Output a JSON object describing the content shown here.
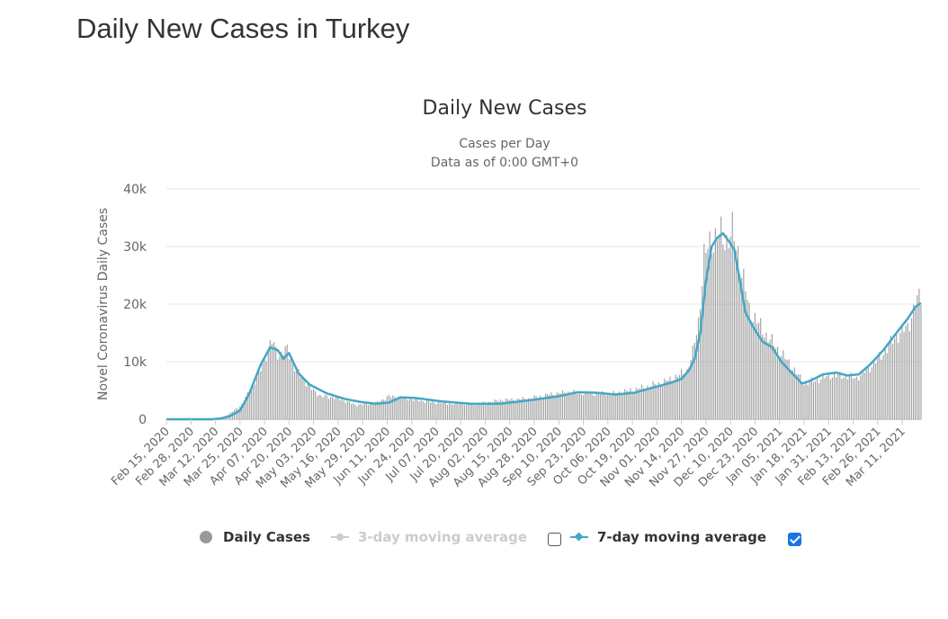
{
  "page": {
    "title": "Daily New Cases in Turkey"
  },
  "legend": {
    "daily_cases": "Daily Cases",
    "ma3": "3-day moving average",
    "ma7": "7-day moving average",
    "ma3_checked": false,
    "ma7_checked": true
  },
  "colors": {
    "bars": "#a0a0a0",
    "ma7": "#43a7c7",
    "ma3_disabled": "#cccccc",
    "grid": "#e6e6e6",
    "text": "#666666"
  },
  "chart_data": {
    "type": "bar",
    "title": "Daily New Cases",
    "subtitle_lines": [
      "Cases per Day",
      "Data as of 0:00 GMT+0"
    ],
    "ylabel": "Novel Coronavirus Daily Cases",
    "ylim": [
      0,
      40000
    ],
    "y_ticks": [
      0,
      10000,
      20000,
      30000,
      40000
    ],
    "y_tick_labels": [
      "0",
      "10k",
      "20k",
      "30k",
      "40k"
    ],
    "x_start": "2020-02-15",
    "x_end": "2021-03-21",
    "x_tick_labels": [
      "Feb 15, 2020",
      "Feb 28, 2020",
      "Mar 12, 2020",
      "Mar 25, 2020",
      "Apr 07, 2020",
      "Apr 20, 2020",
      "May 03, 2020",
      "May 16, 2020",
      "May 29, 2020",
      "Jun 11, 2020",
      "Jun 24, 2020",
      "Jul 07, 2020",
      "Jul 20, 2020",
      "Aug 02, 2020",
      "Aug 15, 2020",
      "Aug 28, 2020",
      "Sep 10, 2020",
      "Sep 23, 2020",
      "Oct 06, 2020",
      "Oct 19, 2020",
      "Nov 01, 2020",
      "Nov 14, 2020",
      "Nov 27, 2020",
      "Dec 10, 2020",
      "Dec 23, 2020",
      "Jan 05, 2021",
      "Jan 18, 2021",
      "Jan 31, 2021",
      "Feb 13, 2021",
      "Feb 26, 2021",
      "Mar 11, 2021"
    ],
    "series": [
      {
        "name": "Daily Cases",
        "kind": "bar",
        "anchor_dates": [
          "2020-02-15",
          "2020-03-10",
          "2020-03-14",
          "2020-03-18",
          "2020-03-22",
          "2020-03-26",
          "2020-03-30",
          "2020-04-03",
          "2020-04-07",
          "2020-04-11",
          "2020-04-15",
          "2020-04-19",
          "2020-04-23",
          "2020-04-27",
          "2020-05-01",
          "2020-05-07",
          "2020-05-15",
          "2020-05-25",
          "2020-06-05",
          "2020-06-12",
          "2020-06-20",
          "2020-07-01",
          "2020-07-15",
          "2020-07-30",
          "2020-08-10",
          "2020-08-25",
          "2020-09-05",
          "2020-09-15",
          "2020-09-30",
          "2020-10-10",
          "2020-10-25",
          "2020-11-05",
          "2020-11-12",
          "2020-11-17",
          "2020-11-20",
          "2020-11-23",
          "2020-11-26",
          "2020-11-29",
          "2020-12-02",
          "2020-12-05",
          "2020-12-08",
          "2020-12-11",
          "2020-12-14",
          "2020-12-17",
          "2020-12-20",
          "2020-12-24",
          "2020-12-28",
          "2021-01-02",
          "2021-01-07",
          "2021-01-12",
          "2021-01-18",
          "2021-01-25",
          "2021-02-01",
          "2021-02-08",
          "2021-02-15",
          "2021-02-22",
          "2021-03-01",
          "2021-03-08",
          "2021-03-14",
          "2021-03-18",
          "2021-03-21"
        ],
        "anchor_values": [
          0,
          0,
          150,
          600,
          1600,
          2500,
          5000,
          7000,
          10500,
          13500,
          11000,
          12200,
          9000,
          7200,
          5500,
          4000,
          3800,
          2500,
          2800,
          4000,
          3700,
          3100,
          2700,
          2700,
          3300,
          3600,
          4300,
          4700,
          4400,
          4500,
          5500,
          6500,
          7500,
          8500,
          11500,
          17000,
          28000,
          30500,
          31500,
          32000,
          31000,
          32500,
          29000,
          24000,
          19000,
          17000,
          15000,
          13000,
          11000,
          9000,
          6200,
          6800,
          7600,
          7500,
          7200,
          9000,
          11500,
          14500,
          16000,
          20000,
          21500
        ]
      },
      {
        "name": "7-day moving average",
        "kind": "line",
        "anchor_dates": [
          "2020-02-15",
          "2020-03-10",
          "2020-03-15",
          "2020-03-20",
          "2020-03-25",
          "2020-03-30",
          "2020-04-05",
          "2020-04-10",
          "2020-04-14",
          "2020-04-17",
          "2020-04-20",
          "2020-04-25",
          "2020-05-01",
          "2020-05-10",
          "2020-05-20",
          "2020-05-28",
          "2020-06-05",
          "2020-06-12",
          "2020-06-18",
          "2020-06-26",
          "2020-07-10",
          "2020-07-25",
          "2020-08-10",
          "2020-08-28",
          "2020-09-10",
          "2020-09-20",
          "2020-09-30",
          "2020-10-10",
          "2020-10-20",
          "2020-10-30",
          "2020-11-08",
          "2020-11-14",
          "2020-11-18",
          "2020-11-21",
          "2020-11-24",
          "2020-11-27",
          "2020-11-30",
          "2020-12-03",
          "2020-12-06",
          "2020-12-09",
          "2020-12-12",
          "2020-12-15",
          "2020-12-18",
          "2020-12-22",
          "2020-12-27",
          "2021-01-01",
          "2021-01-06",
          "2021-01-11",
          "2021-01-17",
          "2021-01-22",
          "2021-01-28",
          "2021-02-04",
          "2021-02-10",
          "2021-02-16",
          "2021-02-22",
          "2021-03-01",
          "2021-03-08",
          "2021-03-14",
          "2021-03-18",
          "2021-03-21"
        ],
        "anchor_values": [
          0,
          0,
          150,
          600,
          1500,
          4500,
          9500,
          12500,
          12000,
          10500,
          11500,
          8000,
          6000,
          4500,
          3500,
          3000,
          2700,
          2900,
          3800,
          3700,
          3100,
          2700,
          2700,
          3400,
          4000,
          4700,
          4600,
          4300,
          4600,
          5500,
          6300,
          7000,
          8500,
          10500,
          15000,
          24000,
          30000,
          31500,
          32300,
          31000,
          29500,
          24000,
          18500,
          16000,
          13500,
          12500,
          10000,
          8200,
          6200,
          6800,
          7800,
          8100,
          7600,
          7800,
          9500,
          12000,
          15000,
          17500,
          19500,
          20200
        ]
      }
    ]
  }
}
